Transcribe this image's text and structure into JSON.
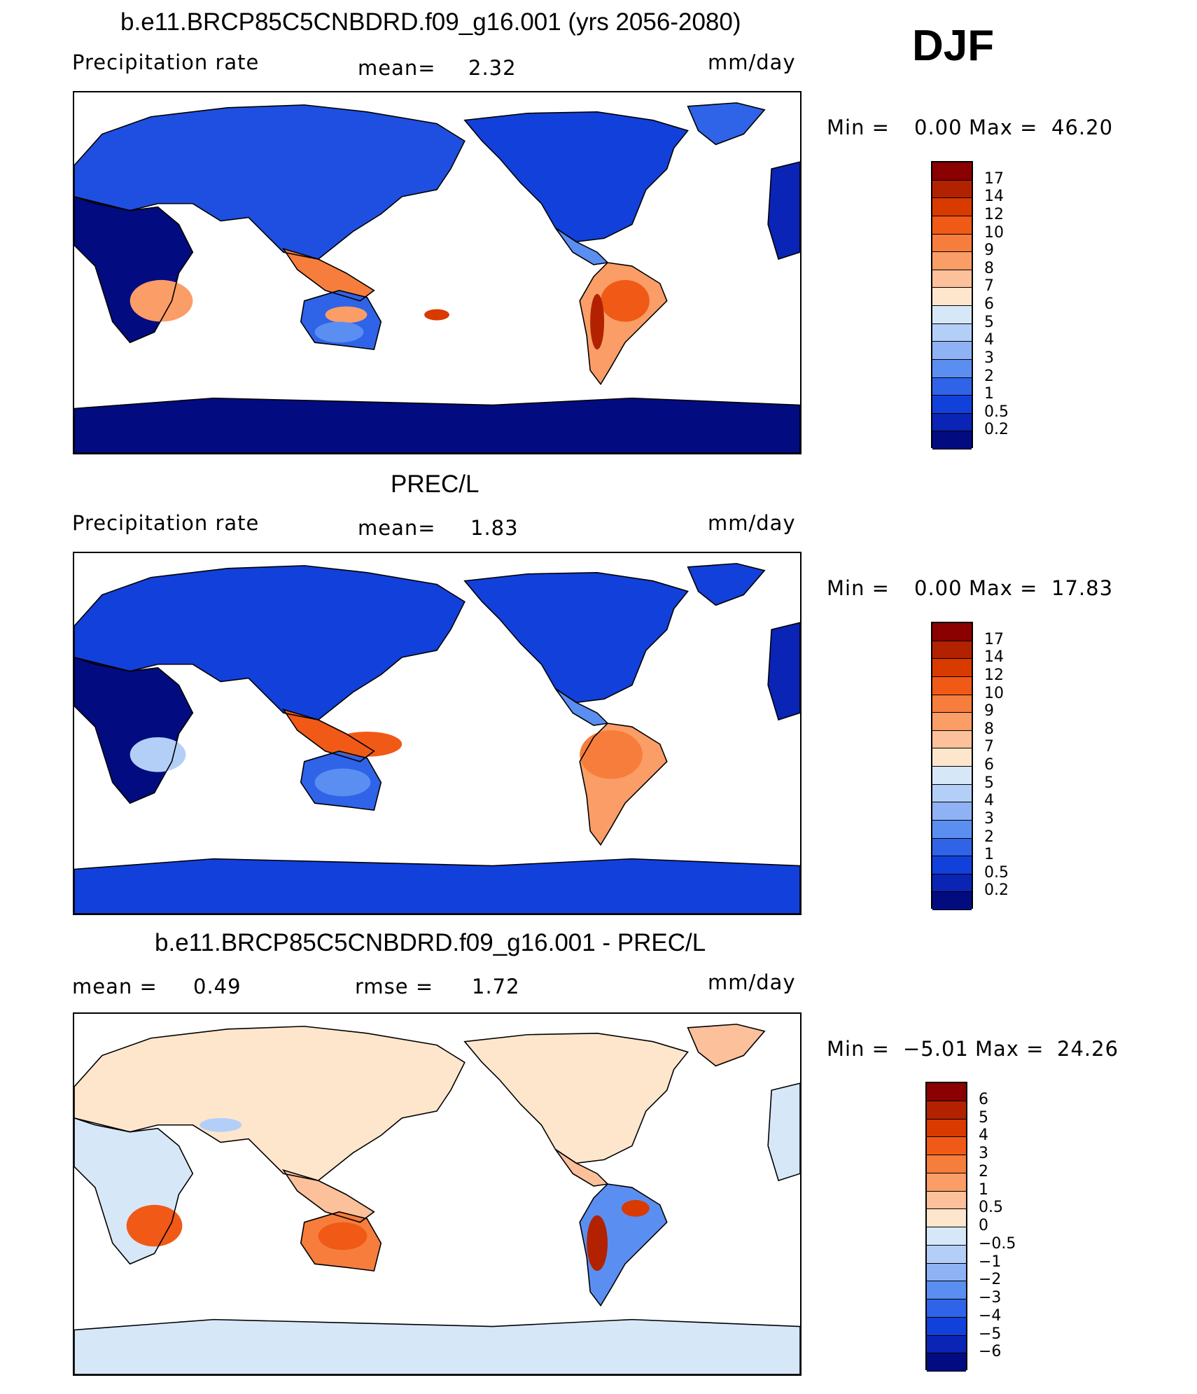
{
  "season": "DJF",
  "panels": [
    {
      "id": "model",
      "title": "b.e11.BRCP85C5CNBDRD.f09_g16.001 (yrs 2056-2080)",
      "left_label": "Precipitation  rate",
      "mid_label": "mean=",
      "mid_value": "2.32",
      "mid2_label": "",
      "mid2_value": "",
      "units": "mm/day",
      "min_label": "Min  =",
      "min_value": "0.00",
      "max_label": "Max  =",
      "max_value": "46.20",
      "colorbar": {
        "labels": [
          "17",
          "14",
          "12",
          "10",
          "9",
          "8",
          "7",
          "6",
          "5",
          "4",
          "3",
          "2",
          "1",
          "0.5",
          "0.2"
        ],
        "colors": [
          "#8b0000",
          "#b22200",
          "#d93a00",
          "#f05a16",
          "#f77d3c",
          "#fa9d66",
          "#fcc09a",
          "#fde6cc",
          "#d6e7f8",
          "#b4cff7",
          "#8fb2f5",
          "#5b8ef1",
          "#2f63e8",
          "#1240db",
          "#0a24b5",
          "#020c80"
        ]
      },
      "map_scheme": "model"
    },
    {
      "id": "obs",
      "title": "PREC/L",
      "left_label": "Precipitation  rate",
      "mid_label": "mean=",
      "mid_value": "1.83",
      "mid2_label": "",
      "mid2_value": "",
      "units": "mm/day",
      "min_label": "Min  =",
      "min_value": "0.00",
      "max_label": "Max  =",
      "max_value": "17.83",
      "colorbar": {
        "labels": [
          "17",
          "14",
          "12",
          "10",
          "9",
          "8",
          "7",
          "6",
          "5",
          "4",
          "3",
          "2",
          "1",
          "0.5",
          "0.2"
        ],
        "colors": [
          "#8b0000",
          "#b22200",
          "#d93a00",
          "#f05a16",
          "#f77d3c",
          "#fa9d66",
          "#fcc09a",
          "#fde6cc",
          "#d6e7f8",
          "#b4cff7",
          "#8fb2f5",
          "#5b8ef1",
          "#2f63e8",
          "#1240db",
          "#0a24b5",
          "#020c80"
        ]
      },
      "map_scheme": "obs"
    },
    {
      "id": "diff",
      "title": "b.e11.BRCP85C5CNBDRD.f09_g16.001 - PREC/L",
      "left_label": "mean  =",
      "mid_label": "0.49",
      "mid_value": "",
      "mid2_label": "rmse  =",
      "mid2_value": "1.72",
      "units": "mm/day",
      "min_label": "Min  =",
      "min_value": "−5.01",
      "max_label": "Max  =",
      "max_value": "24.26",
      "colorbar": {
        "labels": [
          "6",
          "5",
          "4",
          "3",
          "2",
          "1",
          "0.5",
          "0",
          "−0.5",
          "−1",
          "−2",
          "−3",
          "−4",
          "−5",
          "−6"
        ],
        "colors": [
          "#8b0000",
          "#b22200",
          "#d93a00",
          "#f05a16",
          "#f77d3c",
          "#fa9d66",
          "#fcc09a",
          "#fde6cc",
          "#d6e7f8",
          "#b4cff7",
          "#8fb2f5",
          "#5b8ef1",
          "#2f63e8",
          "#1240db",
          "#0a24b5",
          "#020c80"
        ]
      },
      "map_scheme": "diff"
    }
  ]
}
